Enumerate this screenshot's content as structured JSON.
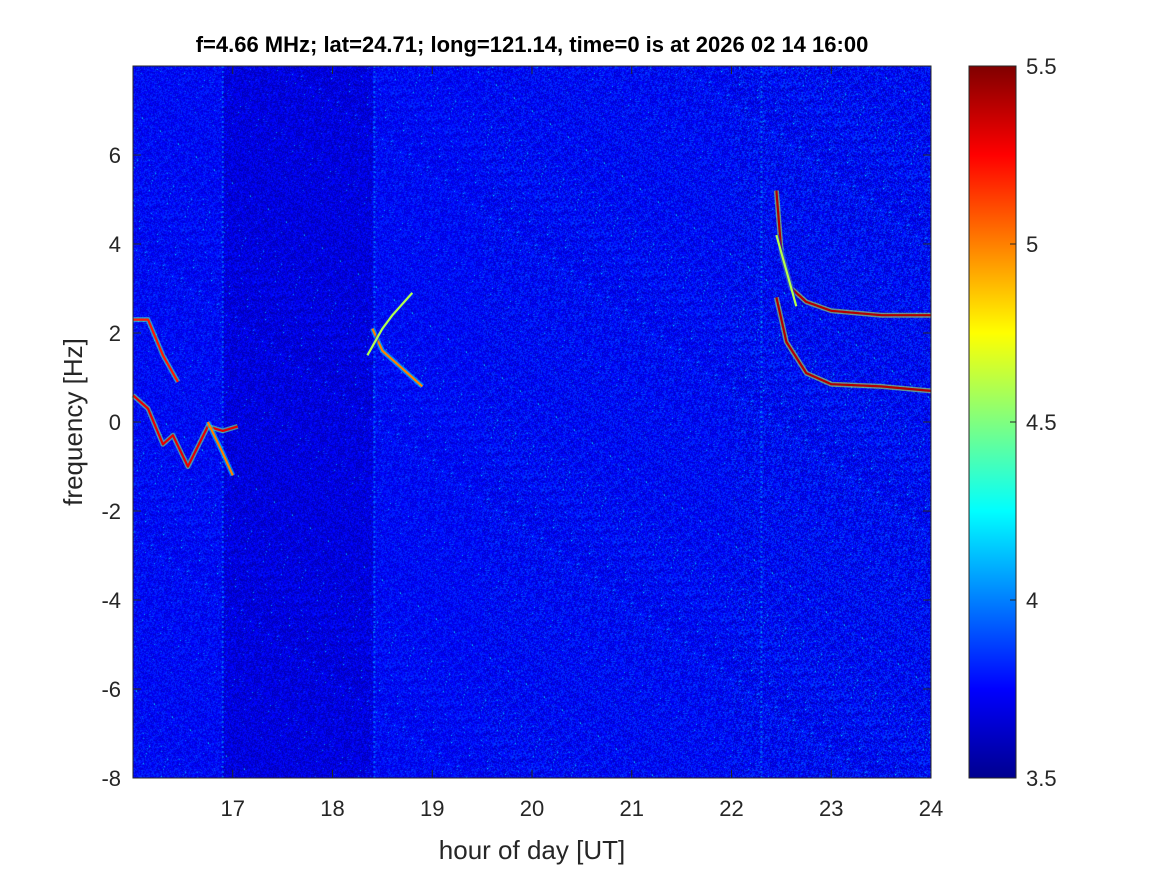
{
  "chart_data": {
    "type": "heatmap",
    "title": "f=4.66 MHz;  lat=24.71; long=121.14, time=0 is at 2026 02 14 16:00",
    "xlabel": "hour of day [UT]",
    "ylabel": "frequency [Hz]",
    "xlim": [
      16,
      24
    ],
    "ylim": [
      -8,
      8
    ],
    "x_ticks": [
      "17",
      "18",
      "19",
      "20",
      "21",
      "22",
      "23",
      "24"
    ],
    "y_ticks": [
      "-8",
      "-6",
      "-4",
      "-2",
      "0",
      "2",
      "4",
      "6"
    ],
    "colorbar": {
      "clim": [
        3.5,
        5.5
      ],
      "ticks": [
        "3.5",
        "4",
        "4.5",
        "5",
        "5.5"
      ],
      "colormap": "jet"
    },
    "background_level": 3.75,
    "vertical_streaks_hour": [
      16.9,
      18.42,
      22.3
    ],
    "traces": [
      {
        "points": [
          [
            16.0,
            2.3
          ],
          [
            16.15,
            2.3
          ],
          [
            16.3,
            1.5
          ],
          [
            16.45,
            0.9
          ]
        ],
        "value": 5.2
      },
      {
        "points": [
          [
            16.0,
            0.6
          ],
          [
            16.15,
            0.3
          ],
          [
            16.3,
            -0.5
          ],
          [
            16.4,
            -0.3
          ],
          [
            16.55,
            -1.0
          ],
          [
            16.75,
            -0.1
          ],
          [
            16.9,
            -0.2
          ],
          [
            17.05,
            -0.1
          ]
        ],
        "value": 5.3
      },
      {
        "points": [
          [
            16.75,
            0.0
          ],
          [
            16.9,
            -0.7
          ],
          [
            17.0,
            -1.2
          ]
        ],
        "value": 5.0
      },
      {
        "points": [
          [
            18.4,
            2.1
          ],
          [
            18.5,
            1.6
          ],
          [
            18.65,
            1.3
          ],
          [
            18.8,
            1.0
          ],
          [
            18.9,
            0.8
          ]
        ],
        "value": 5.0
      },
      {
        "points": [
          [
            18.35,
            1.5
          ],
          [
            18.5,
            2.1
          ],
          [
            18.6,
            2.4
          ],
          [
            18.8,
            2.9
          ]
        ],
        "value": 4.6
      },
      {
        "points": [
          [
            22.45,
            5.2
          ],
          [
            22.5,
            3.8
          ],
          [
            22.6,
            3.0
          ],
          [
            22.75,
            2.7
          ],
          [
            23.0,
            2.5
          ],
          [
            23.5,
            2.4
          ],
          [
            24.0,
            2.4
          ]
        ],
        "value": 5.4
      },
      {
        "points": [
          [
            22.45,
            2.8
          ],
          [
            22.55,
            1.8
          ],
          [
            22.75,
            1.1
          ],
          [
            23.0,
            0.85
          ],
          [
            23.5,
            0.8
          ],
          [
            24.0,
            0.7
          ]
        ],
        "value": 5.4
      },
      {
        "points": [
          [
            22.45,
            4.2
          ],
          [
            22.55,
            3.4
          ],
          [
            22.65,
            2.6
          ]
        ],
        "value": 4.6
      }
    ]
  }
}
